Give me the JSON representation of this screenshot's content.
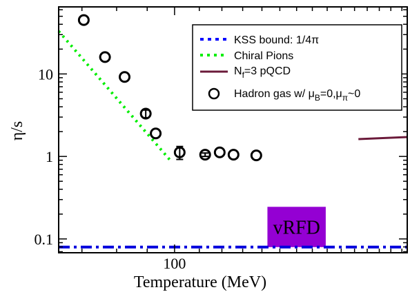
{
  "chart_data": {
    "type": "scatter",
    "xlabel": "Temperature (MeV)",
    "ylabel": "η/s",
    "xscale": "log",
    "yscale": "log",
    "xlim": [
      64,
      245
    ],
    "ylim": [
      0.068,
      65
    ],
    "x_ticks": [
      {
        "value": 100,
        "label": "100"
      }
    ],
    "y_ticks": [
      {
        "value": 0.1,
        "label": "0.1"
      },
      {
        "value": 1,
        "label": "1"
      },
      {
        "value": 10,
        "label": "10"
      }
    ],
    "legend": {
      "position": "top-right",
      "entries": [
        {
          "label": "KSS bound: 1/4π",
          "style": "dotted",
          "color": "#0000ff"
        },
        {
          "label": "Chiral Pions",
          "style": "dotted",
          "color": "#00ee00"
        },
        {
          "label_main": "N",
          "label_sub": "f",
          "label_rest": "=3 pQCD",
          "style": "solid",
          "color": "#6b1a3a"
        },
        {
          "label_main": "Hadron gas w/ μ",
          "label_sub": "B",
          "label_rest": "=0,μ",
          "label_sub2": "π",
          "label_tail": "~0",
          "style": "marker",
          "color": "#000000"
        }
      ]
    },
    "series": [
      {
        "name": "KSS bound: 1/4π",
        "kind": "line",
        "style": "dashdot",
        "color": "#0000dd",
        "x": [
          64,
          245
        ],
        "y": [
          0.0796,
          0.0796
        ]
      },
      {
        "name": "Chiral Pions",
        "kind": "line",
        "style": "dotted",
        "color": "#00ee00",
        "x": [
          64,
          99
        ],
        "y": [
          33,
          0.85
        ]
      },
      {
        "name": "N_f=3 pQCD",
        "kind": "line",
        "style": "solid",
        "color": "#6b1a3a",
        "x": [
          203,
          245
        ],
        "y": [
          1.62,
          1.72
        ]
      },
      {
        "name": "Hadron gas w/ μB=0,μπ~0",
        "kind": "marker",
        "color": "#000000",
        "points": [
          {
            "x": 70.5,
            "y": 45,
            "err": 0
          },
          {
            "x": 76.5,
            "y": 16,
            "err": 0
          },
          {
            "x": 82.5,
            "y": 9.2,
            "err": 0
          },
          {
            "x": 89.5,
            "y": 3.3,
            "err": 0.35
          },
          {
            "x": 93,
            "y": 1.9,
            "err": 0
          },
          {
            "x": 102,
            "y": 1.12,
            "err": 0.2
          },
          {
            "x": 112.5,
            "y": 1.05,
            "err": 0.05
          },
          {
            "x": 119,
            "y": 1.12,
            "err": 0
          },
          {
            "x": 125.5,
            "y": 1.05,
            "err": 0
          },
          {
            "x": 137,
            "y": 1.03,
            "err": 0
          }
        ]
      }
    ],
    "annotations": [
      {
        "text": "vRFD",
        "color": "#9400d3",
        "x0": 143,
        "x1": 179,
        "y0": 0.0796,
        "y1": 0.245
      }
    ]
  }
}
